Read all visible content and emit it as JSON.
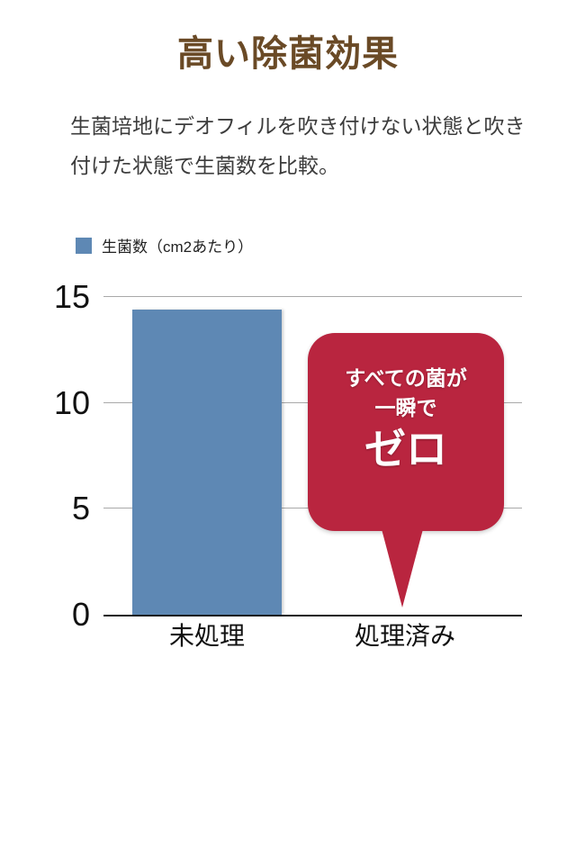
{
  "page": {
    "title": "高い除菌効果",
    "description": "生菌培地にデオフィルを吹き付けない状態と吹き付けた状態で生菌数を比較。"
  },
  "legend": {
    "label": "生菌数（cm2あたり）"
  },
  "chart_data": {
    "type": "bar",
    "title": "高い除菌効果",
    "categories": [
      "未処理",
      "処理済み"
    ],
    "series": [
      {
        "name": "生菌数（cm2あたり）",
        "values": [
          14.4,
          0
        ]
      }
    ],
    "ylabel": "",
    "xlabel": "",
    "ylim": [
      0,
      15
    ],
    "yticks": [
      0,
      5,
      10,
      15
    ],
    "grid": true,
    "legend_position": "top-left",
    "annotation": {
      "target_category": "処理済み",
      "lines": [
        "すべての菌が",
        "一瞬で",
        "ゼロ"
      ],
      "shape": "speech-bubble-down"
    }
  },
  "colors": {
    "background": "#ffffff",
    "title": "#6a4a26",
    "subtitle": "#3c3c3c",
    "bar": "#5e88b4",
    "callout": "#b9253f",
    "callout_text": "#ffffff",
    "gridline": "#a9a9a9",
    "axis_line": "#1a1a1a",
    "tick_label": "#111111"
  }
}
